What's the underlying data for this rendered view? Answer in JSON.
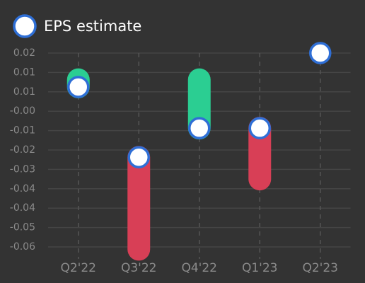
{
  "chart_data": {
    "type": "eps",
    "categories": [
      "Q2'22",
      "Q3'22",
      "Q4'22",
      "Q1'23",
      "Q2'23"
    ],
    "series": [
      {
        "name": "EPS estimate",
        "color": "#ffffff",
        "values": [
          0.007,
          -0.022,
          -0.01,
          -0.01,
          0.021
        ]
      },
      {
        "values": [
          0.01,
          -0.06,
          0.01,
          -0.031,
          null
        ]
      }
    ],
    "beat_color": "#2bce92",
    "miss_color": "#d83f56",
    "ylim": [
      -0.059,
      0.021
    ],
    "yticks": [
      {
        "value": 0.021,
        "label": "0.02"
      },
      {
        "value": 0.013,
        "label": "0.01"
      },
      {
        "value": 0.005,
        "label": "0.01"
      },
      {
        "value": -0.003,
        "label": "-0.00"
      },
      {
        "value": -0.011,
        "label": "-0.01"
      },
      {
        "value": -0.019,
        "label": "-0.02"
      },
      {
        "value": -0.027,
        "label": "-0.03"
      },
      {
        "value": -0.035,
        "label": "-0.04"
      },
      {
        "value": -0.043,
        "label": "-0.04"
      },
      {
        "value": -0.051,
        "label": "-0.05"
      },
      {
        "value": -0.059,
        "label": "-0.06"
      }
    ],
    "grid": true
  }
}
